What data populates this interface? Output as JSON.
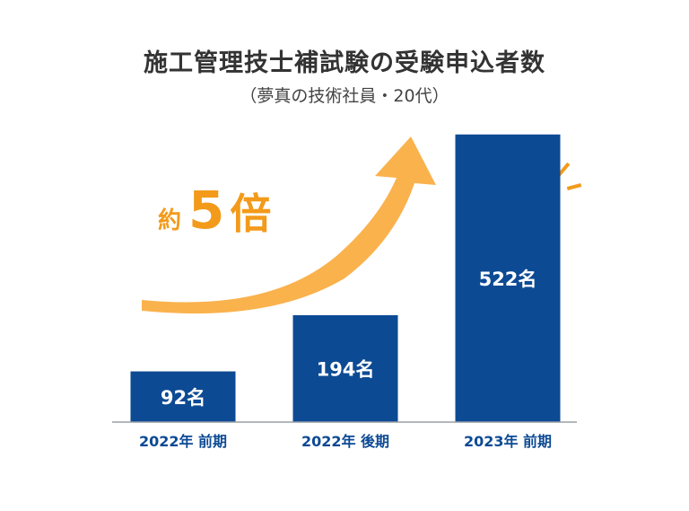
{
  "title": "施工管理技士補試験の受験申込者数",
  "subtitle": "（夢真の技術社員・20代）",
  "callout": {
    "prefix": "約",
    "number": "5",
    "suffix": "倍"
  },
  "colors": {
    "bar": "#0d4a94",
    "arrow": "#fab24d",
    "accent": "#f39a1a",
    "axis": "#9aa0a6",
    "tick_text": "#0d4a94"
  },
  "chart_data": {
    "type": "bar",
    "title": "施工管理技士補試験の受験申込者数",
    "subtitle": "（夢真の技術社員・20代）",
    "categories": [
      "2022年 前期",
      "2022年 後期",
      "2023年 前期"
    ],
    "values": [
      92,
      194,
      522
    ],
    "value_labels": [
      "92名",
      "194名",
      "522名"
    ],
    "unit": "名",
    "ylim": [
      0,
      590
    ],
    "xlabel": "",
    "ylabel": "",
    "grid": false,
    "legend": "none"
  }
}
